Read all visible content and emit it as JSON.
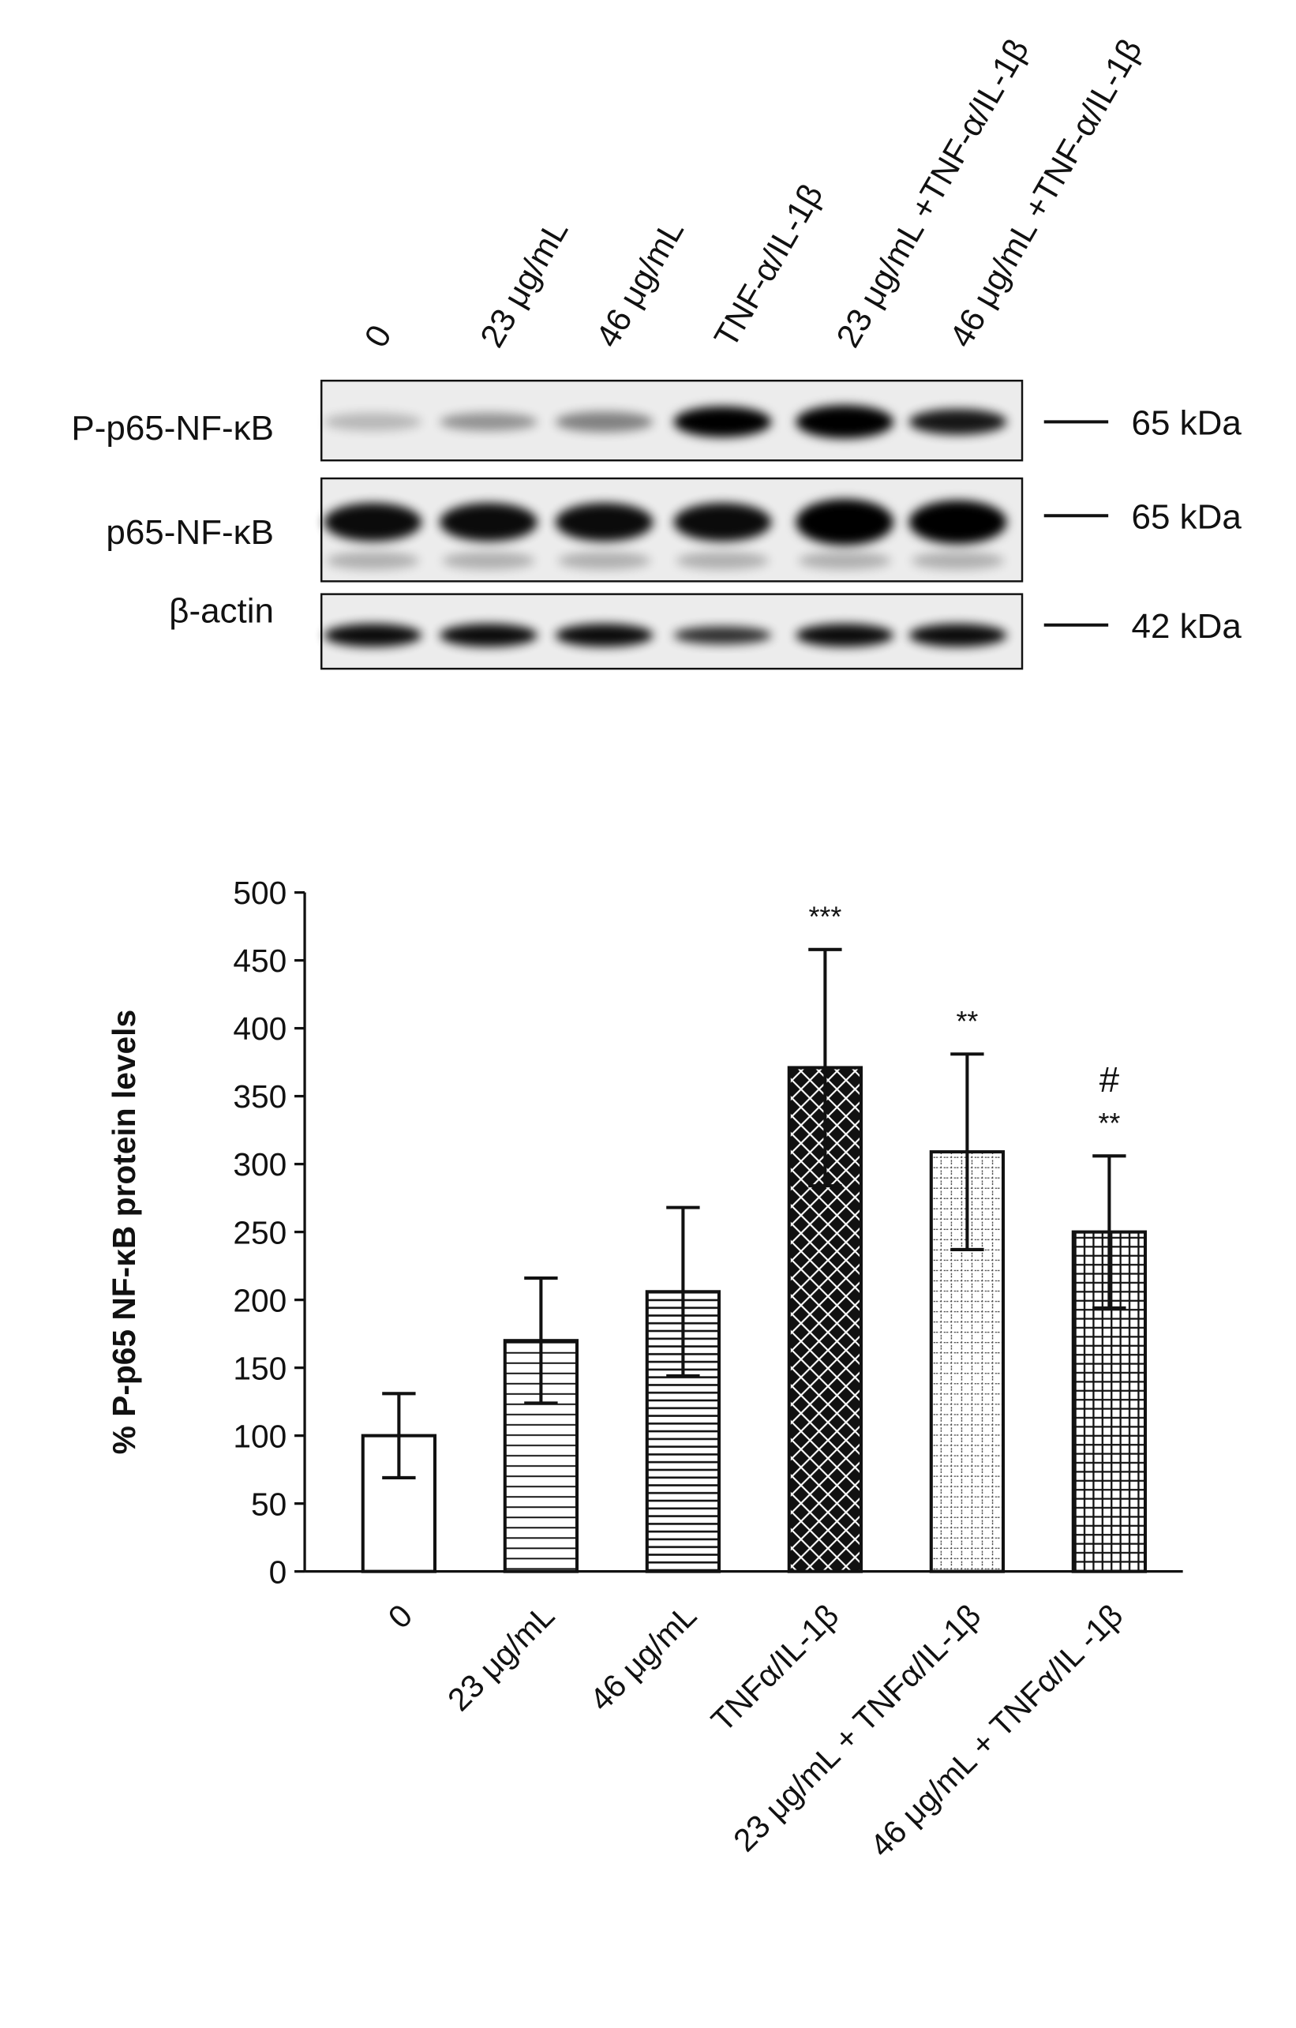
{
  "blot": {
    "lanes": [
      "0",
      "23 μg/mL",
      "46 μg/mL",
      "TNF-α/IL-1β",
      "23 μg/mL +TNF-α/IL-1β",
      "46 μg/mL +TNF-α/IL-1β"
    ],
    "rows": [
      {
        "label": "P-p65-NF-κB",
        "size": "65 kDa"
      },
      {
        "label": "p65-NF-κB",
        "size": "65 kDa"
      },
      {
        "label": "β-actin",
        "size": "42 kDa"
      }
    ]
  },
  "chart_data": {
    "type": "bar",
    "y_label": "% P-p65 NF-κB protein levels",
    "categories": [
      "0",
      "23 μg/mL",
      "46 μg/mL",
      "TNFα/IL-1β",
      "23 μg/mL + TNFα/IL-1β",
      "46 μg/mL + TNFα/IL -1β"
    ],
    "values": [
      100,
      170,
      206,
      371,
      309,
      250
    ],
    "errors": [
      31,
      46,
      62,
      87,
      72,
      56
    ],
    "color": "#111111",
    "patterns": [
      "none",
      "hlines",
      "hlines-dense",
      "crosshatch",
      "dots",
      "grid"
    ],
    "ylim": [
      0,
      500
    ],
    "yticks": [
      0,
      50,
      100,
      150,
      200,
      250,
      300,
      350,
      400,
      450,
      500
    ],
    "annotations": [
      {
        "category": "TNFα/IL-1β",
        "text": "***"
      },
      {
        "category": "23 μg/mL + TNFα/IL-1β",
        "text": "**"
      },
      {
        "category": "46 μg/mL + TNFα/IL -1β",
        "text": "**"
      },
      {
        "category": "46 μg/mL + TNFα/IL -1β",
        "text": "#"
      }
    ]
  }
}
